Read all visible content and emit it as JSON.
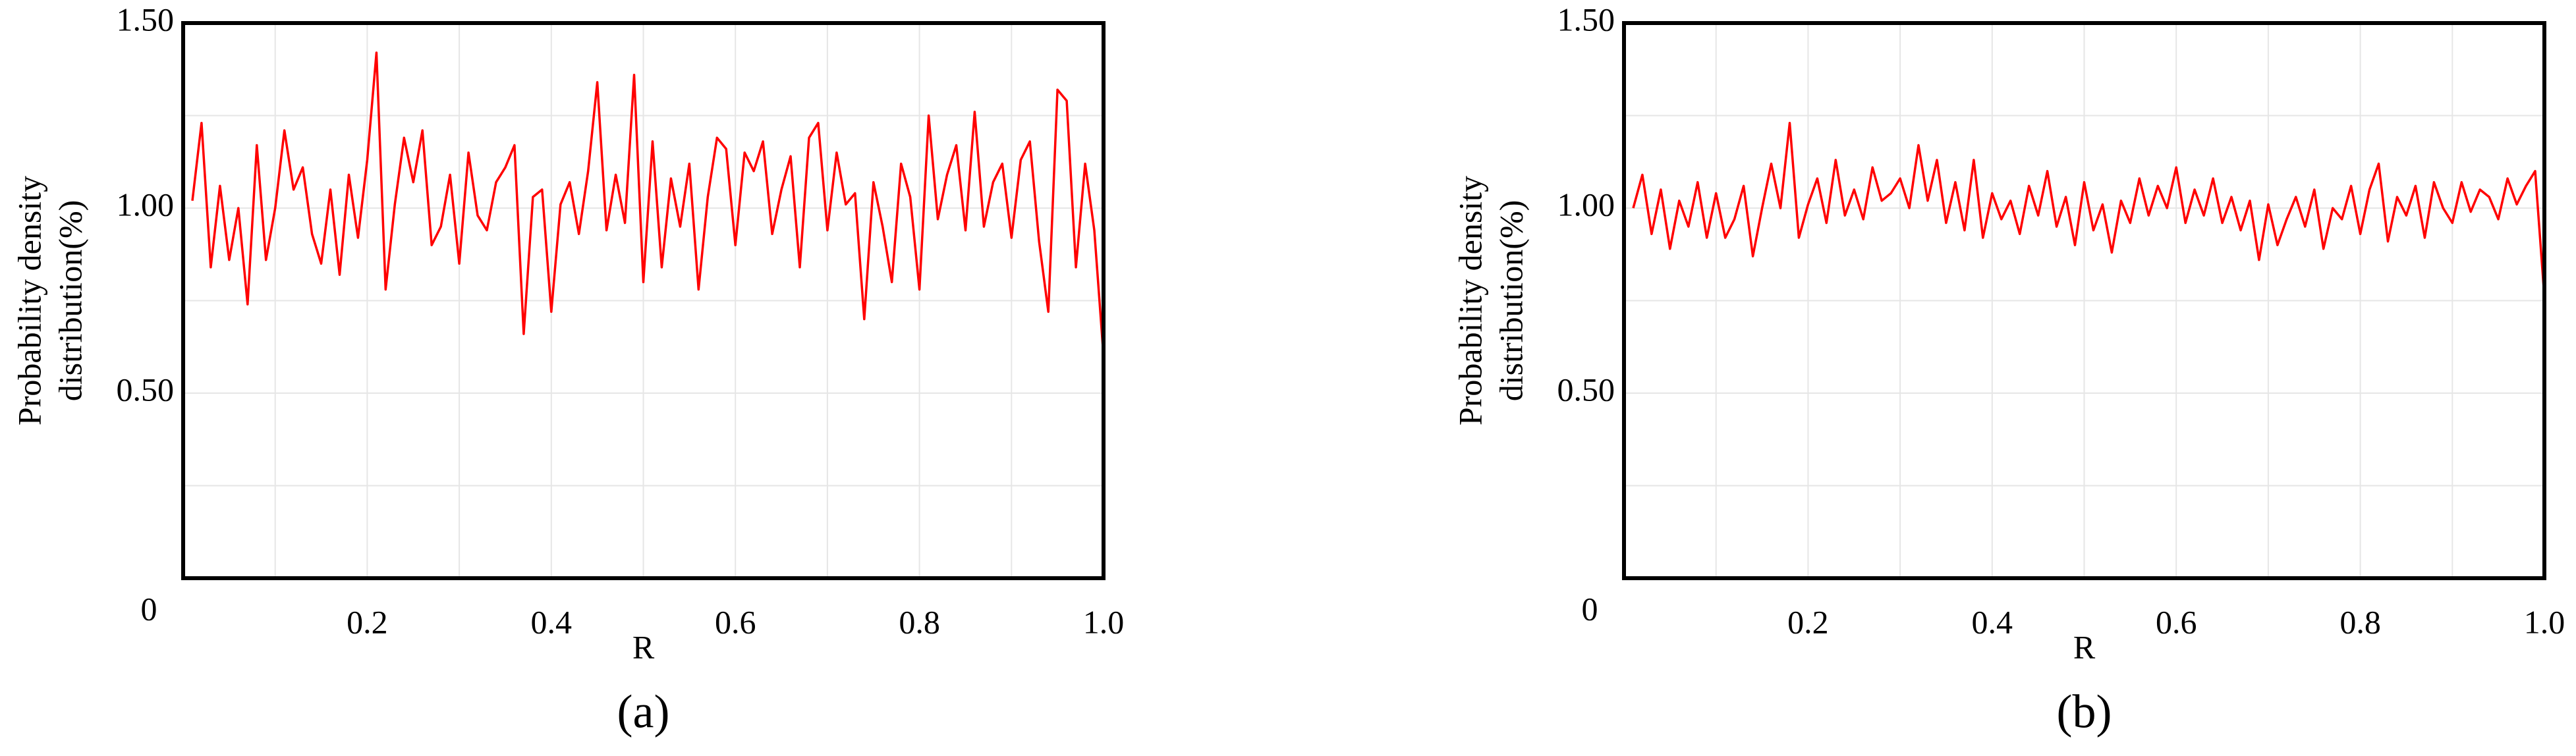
{
  "charts": [
    {
      "type": "line",
      "caption": "(a)",
      "xlabel": "R",
      "ylabel": [
        "Probability density",
        "distribution(%)"
      ],
      "xlim": [
        0,
        1
      ],
      "ylim": [
        0,
        1.5
      ],
      "xticks": [
        0,
        0.2,
        0.4,
        0.6,
        0.8,
        {
          "value": 1,
          "label": "1.0"
        }
      ],
      "yticks": [
        {
          "value": 0.5,
          "label": "0.50"
        },
        {
          "value": 1,
          "label": "1.00"
        },
        {
          "value": 1.5,
          "label": "1.50"
        }
      ],
      "xgrid": [
        0.1,
        0.3,
        0.5,
        0.7,
        0.9
      ],
      "ygrid": [
        0.25,
        0.75,
        1.25
      ],
      "grid": true,
      "series": [
        {
          "color": "#ff0000",
          "x": [
            0.01,
            0.02,
            0.03,
            0.04,
            0.05,
            0.06,
            0.07,
            0.08,
            0.09,
            0.1,
            0.11,
            0.12,
            0.13,
            0.14,
            0.15,
            0.16,
            0.17,
            0.18,
            0.19,
            0.2,
            0.21,
            0.22,
            0.23,
            0.24,
            0.25,
            0.26,
            0.27,
            0.28,
            0.29,
            0.3,
            0.31,
            0.32,
            0.33,
            0.34,
            0.35,
            0.36,
            0.37,
            0.38,
            0.39,
            0.4,
            0.41,
            0.42,
            0.43,
            0.44,
            0.45,
            0.46,
            0.47,
            0.48,
            0.49,
            0.5,
            0.51,
            0.52,
            0.53,
            0.54,
            0.55,
            0.56,
            0.57,
            0.58,
            0.59,
            0.6,
            0.61,
            0.62,
            0.63,
            0.64,
            0.65,
            0.66,
            0.67,
            0.68,
            0.69,
            0.7,
            0.71,
            0.72,
            0.73,
            0.74,
            0.75,
            0.76,
            0.77,
            0.78,
            0.79,
            0.8,
            0.81,
            0.82,
            0.83,
            0.84,
            0.85,
            0.86,
            0.87,
            0.88,
            0.89,
            0.9,
            0.91,
            0.92,
            0.93,
            0.94,
            0.95,
            0.96,
            0.97,
            0.98,
            0.99,
            1.0
          ],
          "values": [
            1.02,
            1.23,
            0.84,
            1.06,
            0.86,
            1.0,
            0.74,
            1.17,
            0.86,
            1.0,
            1.21,
            1.05,
            1.11,
            0.93,
            0.85,
            1.05,
            0.82,
            1.09,
            0.92,
            1.13,
            1.42,
            0.78,
            1.01,
            1.19,
            1.07,
            1.21,
            0.9,
            0.95,
            1.09,
            0.85,
            1.15,
            0.98,
            0.94,
            1.07,
            1.11,
            1.17,
            0.66,
            1.03,
            1.05,
            0.72,
            1.01,
            1.07,
            0.93,
            1.1,
            1.34,
            0.94,
            1.09,
            0.96,
            1.36,
            0.8,
            1.18,
            0.84,
            1.08,
            0.95,
            1.12,
            0.78,
            1.03,
            1.19,
            1.16,
            0.9,
            1.15,
            1.1,
            1.18,
            0.93,
            1.05,
            1.14,
            0.84,
            1.19,
            1.23,
            0.94,
            1.15,
            1.01,
            1.04,
            0.7,
            1.07,
            0.95,
            0.8,
            1.12,
            1.03,
            0.78,
            1.25,
            0.97,
            1.09,
            1.17,
            0.94,
            1.26,
            0.95,
            1.07,
            1.12,
            0.92,
            1.13,
            1.18,
            0.91,
            0.72,
            1.32,
            1.29,
            0.84,
            1.12,
            0.94,
            0.6
          ]
        }
      ]
    },
    {
      "type": "line",
      "caption": "(b)",
      "xlabel": "R",
      "ylabel": [
        "Probability density",
        "distribution(%)"
      ],
      "xlim": [
        0,
        1
      ],
      "ylim": [
        0,
        1.5
      ],
      "xticks": [
        0,
        0.2,
        0.4,
        0.6,
        0.8,
        {
          "value": 1,
          "label": "1.0"
        }
      ],
      "yticks": [
        {
          "value": 0.5,
          "label": "0.50"
        },
        {
          "value": 1,
          "label": "1.00"
        },
        {
          "value": 1.5,
          "label": "1.50"
        }
      ],
      "xgrid": [
        0.1,
        0.3,
        0.5,
        0.7,
        0.9
      ],
      "ygrid": [
        0.25,
        0.75,
        1.25
      ],
      "grid": true,
      "series": [
        {
          "color": "#ff0000",
          "x": [
            0.01,
            0.02,
            0.03,
            0.04,
            0.05,
            0.06,
            0.07,
            0.08,
            0.09,
            0.1,
            0.11,
            0.12,
            0.13,
            0.14,
            0.15,
            0.16,
            0.17,
            0.18,
            0.19,
            0.2,
            0.21,
            0.22,
            0.23,
            0.24,
            0.25,
            0.26,
            0.27,
            0.28,
            0.29,
            0.3,
            0.31,
            0.32,
            0.33,
            0.34,
            0.35,
            0.36,
            0.37,
            0.38,
            0.39,
            0.4,
            0.41,
            0.42,
            0.43,
            0.44,
            0.45,
            0.46,
            0.47,
            0.48,
            0.49,
            0.5,
            0.51,
            0.52,
            0.53,
            0.54,
            0.55,
            0.56,
            0.57,
            0.58,
            0.59,
            0.6,
            0.61,
            0.62,
            0.63,
            0.64,
            0.65,
            0.66,
            0.67,
            0.68,
            0.69,
            0.7,
            0.71,
            0.72,
            0.73,
            0.74,
            0.75,
            0.76,
            0.77,
            0.78,
            0.79,
            0.8,
            0.81,
            0.82,
            0.83,
            0.84,
            0.85,
            0.86,
            0.87,
            0.88,
            0.89,
            0.9,
            0.91,
            0.92,
            0.93,
            0.94,
            0.95,
            0.96,
            0.97,
            0.98,
            0.99,
            1.0
          ],
          "values": [
            1.0,
            1.09,
            0.93,
            1.05,
            0.89,
            1.02,
            0.95,
            1.07,
            0.92,
            1.04,
            0.92,
            0.97,
            1.06,
            0.87,
            1.0,
            1.12,
            1.0,
            1.23,
            0.92,
            1.01,
            1.08,
            0.96,
            1.13,
            0.98,
            1.05,
            0.97,
            1.11,
            1.02,
            1.04,
            1.08,
            1.0,
            1.17,
            1.02,
            1.13,
            0.96,
            1.07,
            0.94,
            1.13,
            0.92,
            1.04,
            0.97,
            1.02,
            0.93,
            1.06,
            0.98,
            1.1,
            0.95,
            1.03,
            0.9,
            1.07,
            0.94,
            1.01,
            0.88,
            1.02,
            0.96,
            1.08,
            0.98,
            1.06,
            1.0,
            1.11,
            0.96,
            1.05,
            0.98,
            1.08,
            0.96,
            1.03,
            0.94,
            1.02,
            0.86,
            1.01,
            0.9,
            0.97,
            1.03,
            0.95,
            1.05,
            0.89,
            1.0,
            0.97,
            1.06,
            0.93,
            1.05,
            1.12,
            0.91,
            1.03,
            0.98,
            1.06,
            0.92,
            1.07,
            1.0,
            0.96,
            1.07,
            0.99,
            1.05,
            1.03,
            0.97,
            1.08,
            1.01,
            1.06,
            1.1,
            0.76
          ]
        }
      ]
    }
  ]
}
